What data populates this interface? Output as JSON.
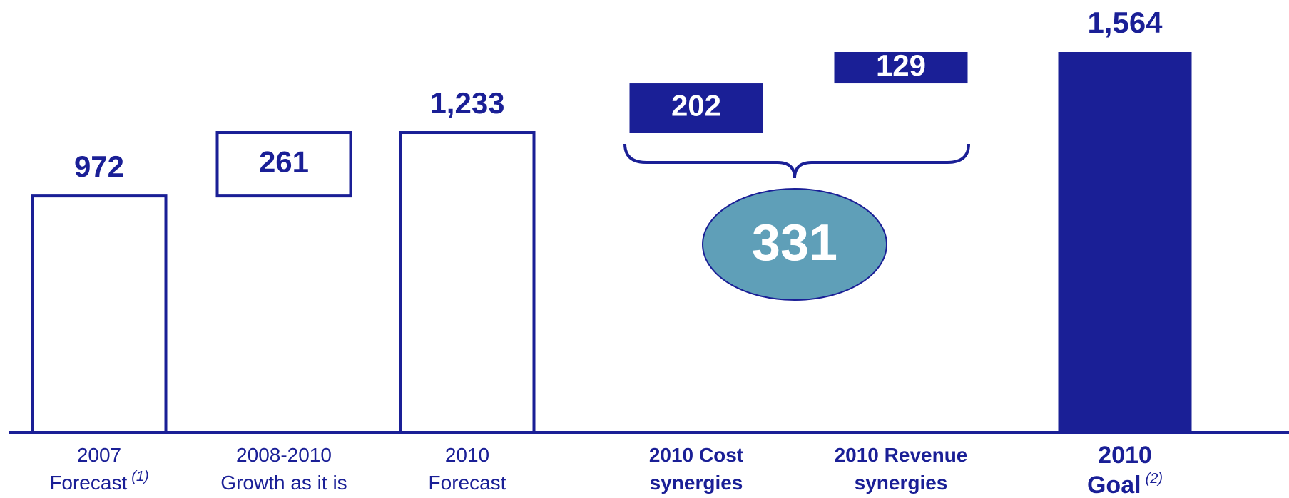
{
  "chart_data": {
    "type": "waterfall",
    "categories": [
      "2007\nForecast",
      "2008-2010\nGrowth as it is",
      "2010\nForecast",
      "2010 Cost\nsynergies",
      "2010 Revenue\nsynergies",
      "2010\nGoal"
    ],
    "footnotes": [
      "(1)",
      null,
      null,
      null,
      null,
      "(2)"
    ],
    "kinds": [
      "total",
      "increase",
      "total",
      "increase",
      "increase",
      "total"
    ],
    "highlight": [
      false,
      false,
      false,
      true,
      true,
      true
    ],
    "values": [
      972,
      261,
      1233,
      202,
      129,
      1564
    ],
    "value_labels": [
      "972",
      "261",
      "1,233",
      "202",
      "129",
      "1,564"
    ],
    "synergy_total": 331,
    "color": "#1a1f96",
    "ellipse_color": "#5f9fb8",
    "ylim": [
      0,
      1564
    ]
  }
}
